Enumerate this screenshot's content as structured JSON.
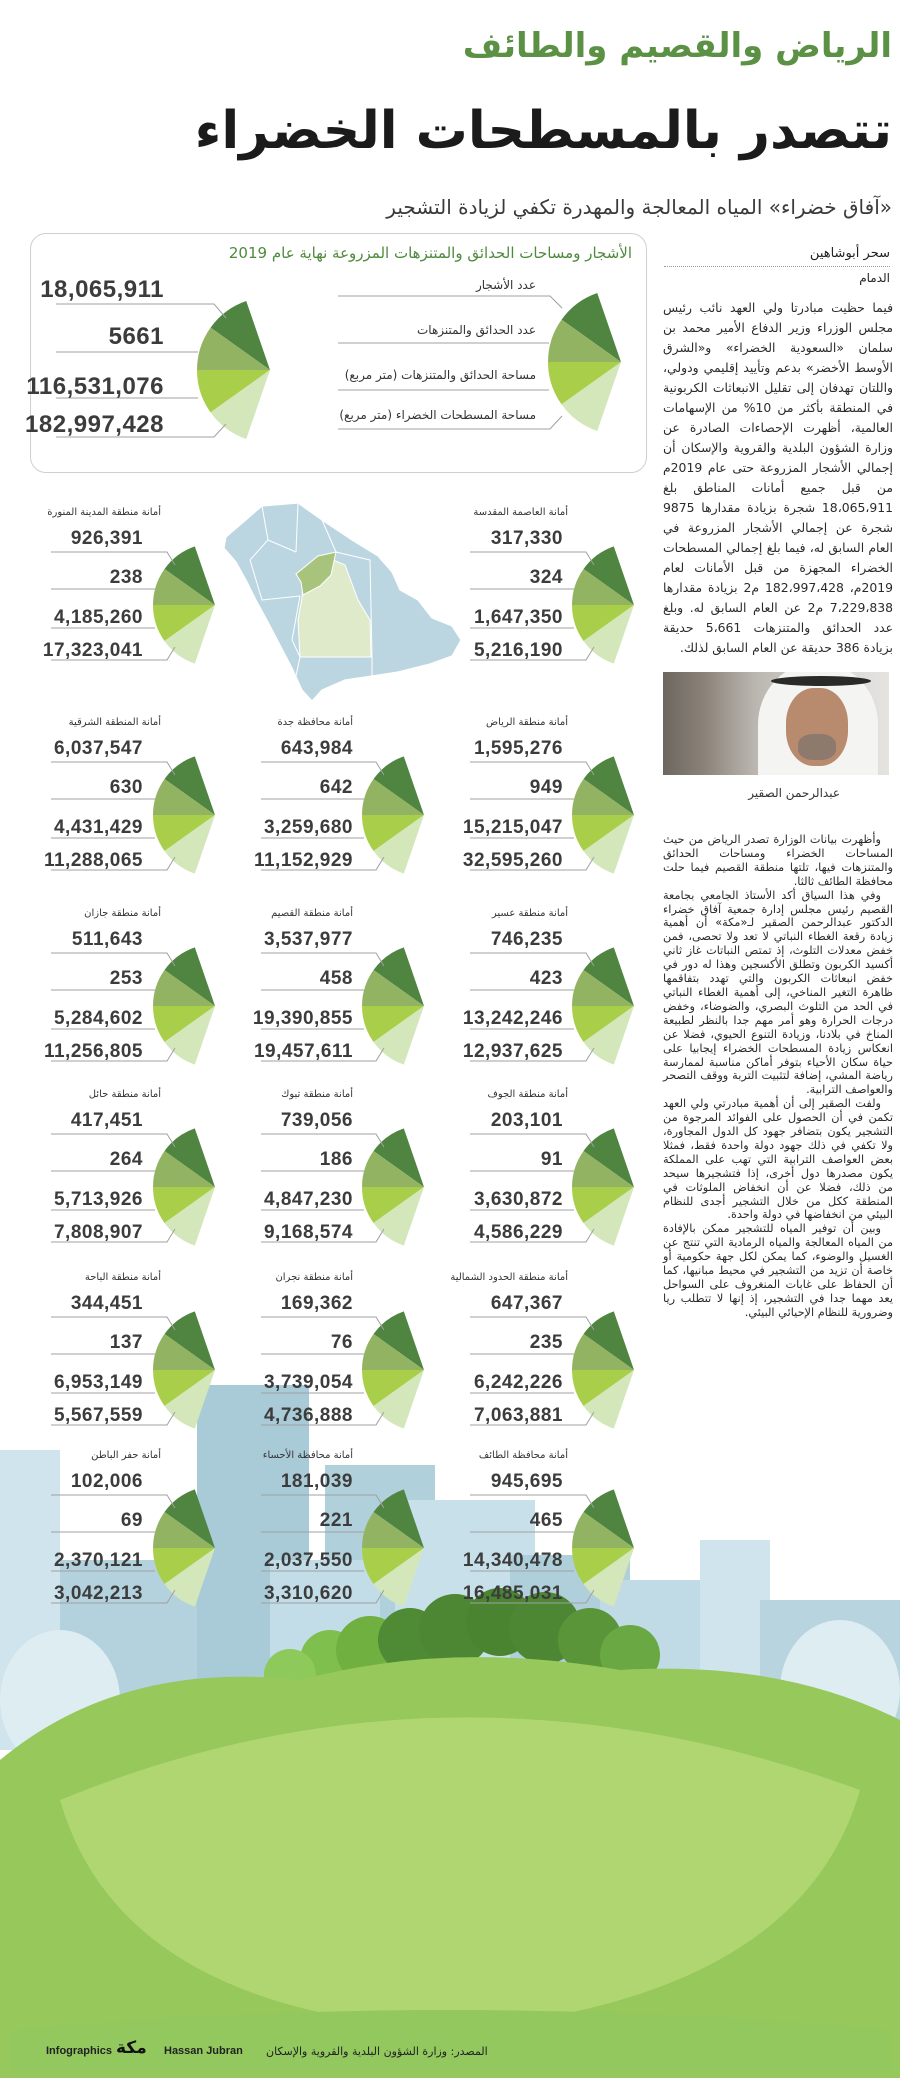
{
  "header": {
    "kicker": "الرياض والقصيم والطائف",
    "title": "تتصدر بالمسطحات الخضراء",
    "subtitle": "«آفاق خضراء» المياه المعالجة والمهدرة تكفي لزيادة التشجير"
  },
  "summary": {
    "title": "الأشجار ومساحات الحدائق والمتنزهات المزروعة نهاية عام 2019",
    "labels": [
      "عدد الأشجار",
      "عدد الحدائق والمتنزهات",
      "مساحة الحدائق والمتنزهات (متر مربع)",
      "مساحة المسطحات الخضراء (متر مربع)"
    ],
    "values": [
      "18,065,911",
      "5661",
      "116,531,076",
      "182,997,428"
    ]
  },
  "regions": [
    {
      "name": "أمانة العاصمة المقدسة",
      "values": [
        "317,330",
        "324",
        "1,647,350",
        "5,216,190"
      ]
    },
    {
      "name": "أمانة منطقة المدينة المنورة",
      "values": [
        "926,391",
        "238",
        "4,185,260",
        "17,323,041"
      ]
    },
    {
      "name": "أمانة منطقة الرياض",
      "values": [
        "1,595,276",
        "949",
        "15,215,047",
        "32,595,260"
      ]
    },
    {
      "name": "أمانة محافظة جدة",
      "values": [
        "643,984",
        "642",
        "3,259,680",
        "11,152,929"
      ]
    },
    {
      "name": "أمانة المنطقة الشرقية",
      "values": [
        "6,037,547",
        "630",
        "4,431,429",
        "11,288,065"
      ]
    },
    {
      "name": "أمانة منطقة عسير",
      "values": [
        "746,235",
        "423",
        "13,242,246",
        "12,937,625"
      ]
    },
    {
      "name": "أمانة منطقة القصيم",
      "values": [
        "3,537,977",
        "458",
        "19,390,855",
        "19,457,611"
      ]
    },
    {
      "name": "أمانة منطقة جازان",
      "values": [
        "511,643",
        "253",
        "5,284,602",
        "11,256,805"
      ]
    },
    {
      "name": "أمانة منطقة الجوف",
      "values": [
        "203,101",
        "91",
        "3,630,872",
        "4,586,229"
      ]
    },
    {
      "name": "أمانة منطقة تبوك",
      "values": [
        "739,056",
        "186",
        "4,847,230",
        "9,168,574"
      ]
    },
    {
      "name": "أمانة منطقة حائل",
      "values": [
        "417,451",
        "264",
        "5,713,926",
        "7,808,907"
      ]
    },
    {
      "name": "أمانة منطقة الحدود الشمالية",
      "values": [
        "647,367",
        "235",
        "6,242,226",
        "7,063,881"
      ]
    },
    {
      "name": "أمانة منطقة نجران",
      "values": [
        "169,362",
        "76",
        "3,739,054",
        "4,736,888"
      ]
    },
    {
      "name": "أمانة منطقة الباحة",
      "values": [
        "344,451",
        "137",
        "6,953,149",
        "5,567,559"
      ]
    },
    {
      "name": "أمانة محافظة الطائف",
      "values": [
        "945,695",
        "465",
        "14,340,478",
        "16,485,031"
      ]
    },
    {
      "name": "أمانة محافظة الأحساء",
      "values": [
        "181,039",
        "221",
        "2,037,550",
        "3,310,620"
      ]
    },
    {
      "name": "أمانة حفر الباطن",
      "values": [
        "102,006",
        "69",
        "2,370,121",
        "3,042,213"
      ]
    }
  ],
  "map": {
    "highlighted": [
      "القصيم",
      "الرياض"
    ]
  },
  "article": {
    "byline": "سحر أبوشاهين",
    "city": "الدمام",
    "intro": "فيما حظيت مبادرتا ولي العهد نائب رئيس مجلس الوزراء وزير الدفاع الأمير محمد بن سلمان «السعودية الخضراء» و«الشرق الأوسط الأخضر» بدعم وتأييد إقليمي ودولي، واللتان تهدفان إلى تقليل الانبعاثات الكربونية في المنطقة بأكثر من 10% من الإسهامات العالمية، أظهرت الإحصاءات الصادرة عن وزارة الشؤون البلدية والقروية والإسكان أن إجمالي الأشجار المزروعة حتى عام 2019م من قبل جميع أمانات المناطق بلغ 18،065،911 شجرة بزيادة مقدارها 9875 شجرة عن إجمالي الأشجار المزروعة في العام السابق له، فيما بلغ إجمالي المسطحات الخضراء المجهزة من قبل الأمانات لعام 2019م، 182،997،428 م2 بزيادة مقدارها 7،229،838 م2 عن العام السابق له. وبلغ عدد الحدائق والمتنزهات 5،661 حديقة بزيادة 386 حديقة عن العام السابق لذلك.",
    "photo_caption": "عبدالرحمن الصقير",
    "paragraphs": [
      "وأظهرت بيانات الوزارة تصدر الرياض من حيث المساحات الخضراء ومساحات الحدائق والمتنزهات فيها، تلتها منطقة القصيم فيما حلت محافظة الطائف ثالثا.",
      "وفي هذا السياق أكد الأستاذ الجامعي بجامعة القصيم رئيس مجلس إدارة جمعية آفاق خضراء الدكتور عبدالرحمن الصقير لـ«مكة» أن أهمية زيادة رقعة الغطاء النباتي لا تعد ولا تحصى، فمن خفض معدلات التلوث، إذ تمتص النباتات غاز ثاني أكسيد الكربون وتطلق الأكسجين وهذا له دور في خفض انبعاثات الكربون والتي تهدد بتفاقمها ظاهرة التغير المناخي، إلى أهمية الغطاء النباتي في الحد من التلوث البصري، والضوضاء، وخفض درجات الحرارة وهو أمر مهم جدا بالنظر لطبيعة المناخ في بلادنا، وزيادة التنوع الحيوي، فضلا عن انعكاس زيادة المسطحات الخضراء إيجابيا على حياة سكان الأحياء بتوفر أماكن مناسبة لممارسة رياضة المشي، إضافة لتثبيت التربة ووقف التصحر والعواصف الترابية.",
      "ولفت الصقير إلى أن أهمية مبادرتي ولي العهد تكمن في أن الحصول على الفوائد المرجوة من التشجير يكون بتضافر جهود كل الدول المجاورة، ولا تكفي في ذلك جهود دولة واحدة فقط، فمثلا بعض العواصف الترابية التي تهب على المملكة يكون مصدرها دول أخرى، إذا فتشجيرها سيحد من ذلك، فضلا عن أن انخفاض الملوثات في المنطقة ككل من خلال التشجير أجدى للنظام البيئي من انخفاضها في دولة واحدة.",
      "وبين أن توفير المياه للتشجير ممكن بالإفادة من المياه المعالجة والمياه الرمادية التي تنتج عن الغسيل والوضوء، كما يمكن لكل جهة حكومية أو خاصة أن تزيد من التشجير في محيط مبانيها، كما أن الحفاظ على غابات المنغروف على السواحل يعد مهما جدا في التشجير، إذ إنها لا تتطلب ريا وضرورية للنظام الإحيائي البيئي."
    ]
  },
  "footer": {
    "source": "المصدر: وزارة الشؤون البلدية والقروية والإسكان",
    "credit_prefix": "Infographics",
    "logo_text": "مكة",
    "credit_name": "Hassan Jubran"
  },
  "colors": {
    "wedge_trees": "#4f8540",
    "wedge_parks": "#92b462",
    "wedge_park_area": "#a9cf4a",
    "wedge_green_area": "#d4e7bb",
    "headline_green": "#5b9144",
    "map_base": "#bcd6e1",
    "ground": "#96c85c"
  }
}
